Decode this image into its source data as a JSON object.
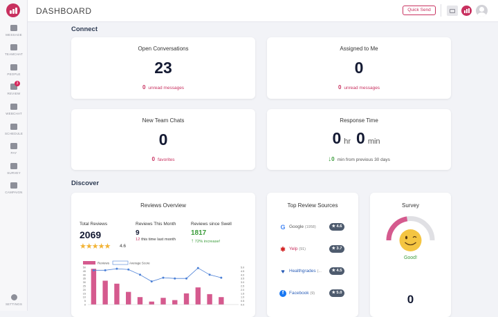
{
  "header": {
    "title": "DASHBOARD",
    "quick_send_label": "Quick Send"
  },
  "sidebar": {
    "items": [
      {
        "label": "MESSAGE",
        "icon": "message-icon"
      },
      {
        "label": "TEAMCHAT",
        "icon": "teamchat-icon"
      },
      {
        "label": "PEOPLE",
        "icon": "people-icon"
      },
      {
        "label": "REVIEW",
        "icon": "review-icon",
        "badge": "3"
      },
      {
        "label": "WEBCHAT",
        "icon": "webchat-icon"
      },
      {
        "label": "SCHEDULE",
        "icon": "schedule-icon"
      },
      {
        "label": "PAY",
        "icon": "pay-icon"
      },
      {
        "label": "SURVEY",
        "icon": "survey-icon"
      },
      {
        "label": "CAMPAIGN",
        "icon": "campaign-icon"
      }
    ],
    "settings_label": "SETTINGS"
  },
  "sections": {
    "connect": "Connect",
    "discover": "Discover"
  },
  "cards": {
    "open_conversations": {
      "title": "Open Conversations",
      "value": "23",
      "sub_count": "0",
      "sub_text": "unread messages"
    },
    "assigned": {
      "title": "Assigned to Me",
      "value": "0",
      "sub_count": "0",
      "sub_text": "unread messages"
    },
    "team_chats": {
      "title": "New Team Chats",
      "value": "0",
      "sub_count": "0",
      "sub_text": "favorites"
    },
    "response_time": {
      "title": "Response Time",
      "hours": "0",
      "hr_unit": "hr",
      "minutes": "0",
      "min_unit": "min",
      "change_arrow": "↓",
      "change_value": "0",
      "change_text": "min from previous 30 days"
    }
  },
  "reviews": {
    "title": "Reviews Overview",
    "total_label": "Total Reviews",
    "total_value": "2069",
    "rating": "4.6",
    "month_label": "Reviews This Month",
    "month_value": "9",
    "month_sub_count": "12",
    "month_sub_text": "this time last month",
    "swell_label": "Reviews since Swell",
    "swell_value": "1817",
    "swell_arrow": "↑",
    "swell_sub": "72% increase!",
    "legend_reviews": "Reviews",
    "legend_avg": "Average Score"
  },
  "top_sources": {
    "title": "Top Review Sources",
    "items": [
      {
        "name": "Google",
        "count": "(1958)",
        "score": "★ 4.6",
        "icon": "google-icon",
        "color": "#555555"
      },
      {
        "name": "Yelp",
        "count": "(91)",
        "score": "★ 3.7",
        "icon": "yelp-icon",
        "color": "#c8305f"
      },
      {
        "name": "Healthgrades",
        "count": "(...",
        "score": "★ 4.5",
        "icon": "healthgrades-icon",
        "color": "#2c5fb8"
      },
      {
        "name": "Facebook",
        "count": "(9)",
        "score": "★ 5.0",
        "icon": "facebook-icon",
        "color": "#2c5fb8"
      }
    ]
  },
  "survey": {
    "title": "Survey",
    "status": "Good!",
    "value": "0",
    "gauge_level": 0.45
  },
  "colors": {
    "accent": "#c8305f",
    "navy": "#141a33",
    "green": "#3a9b3a",
    "bar": "#d55a8e",
    "line": "#4a7fd6"
  },
  "chart_data": {
    "type": "bar",
    "categories": [
      "",
      "",
      "",
      "",
      "",
      "",
      "",
      "",
      "",
      "",
      "",
      "",
      ""
    ],
    "series": [
      {
        "name": "Reviews",
        "type": "bar",
        "values": [
          48,
          32,
          28,
          17,
          10,
          4,
          9,
          6,
          15,
          23,
          14,
          10,
          0
        ]
      },
      {
        "name": "Average Score",
        "type": "line",
        "axis": "right",
        "values": [
          4.6,
          4.6,
          4.8,
          4.7,
          4.0,
          3.1,
          3.6,
          3.5,
          3.5,
          4.9,
          4.0,
          3.6,
          0
        ]
      }
    ],
    "y_ticks_left": [
      "50",
      "45",
      "40",
      "35",
      "30",
      "25",
      "20",
      "15",
      "10",
      "5",
      "0"
    ],
    "y_ticks_right": [
      "5.0",
      "4.5",
      "4.0",
      "3.5",
      "3.0",
      "2.5",
      "2.0",
      "1.5",
      "1.0",
      "0.5",
      "0.0"
    ],
    "ylim": [
      0,
      50
    ],
    "y2lim": [
      0,
      5
    ],
    "legend": "top-left"
  }
}
